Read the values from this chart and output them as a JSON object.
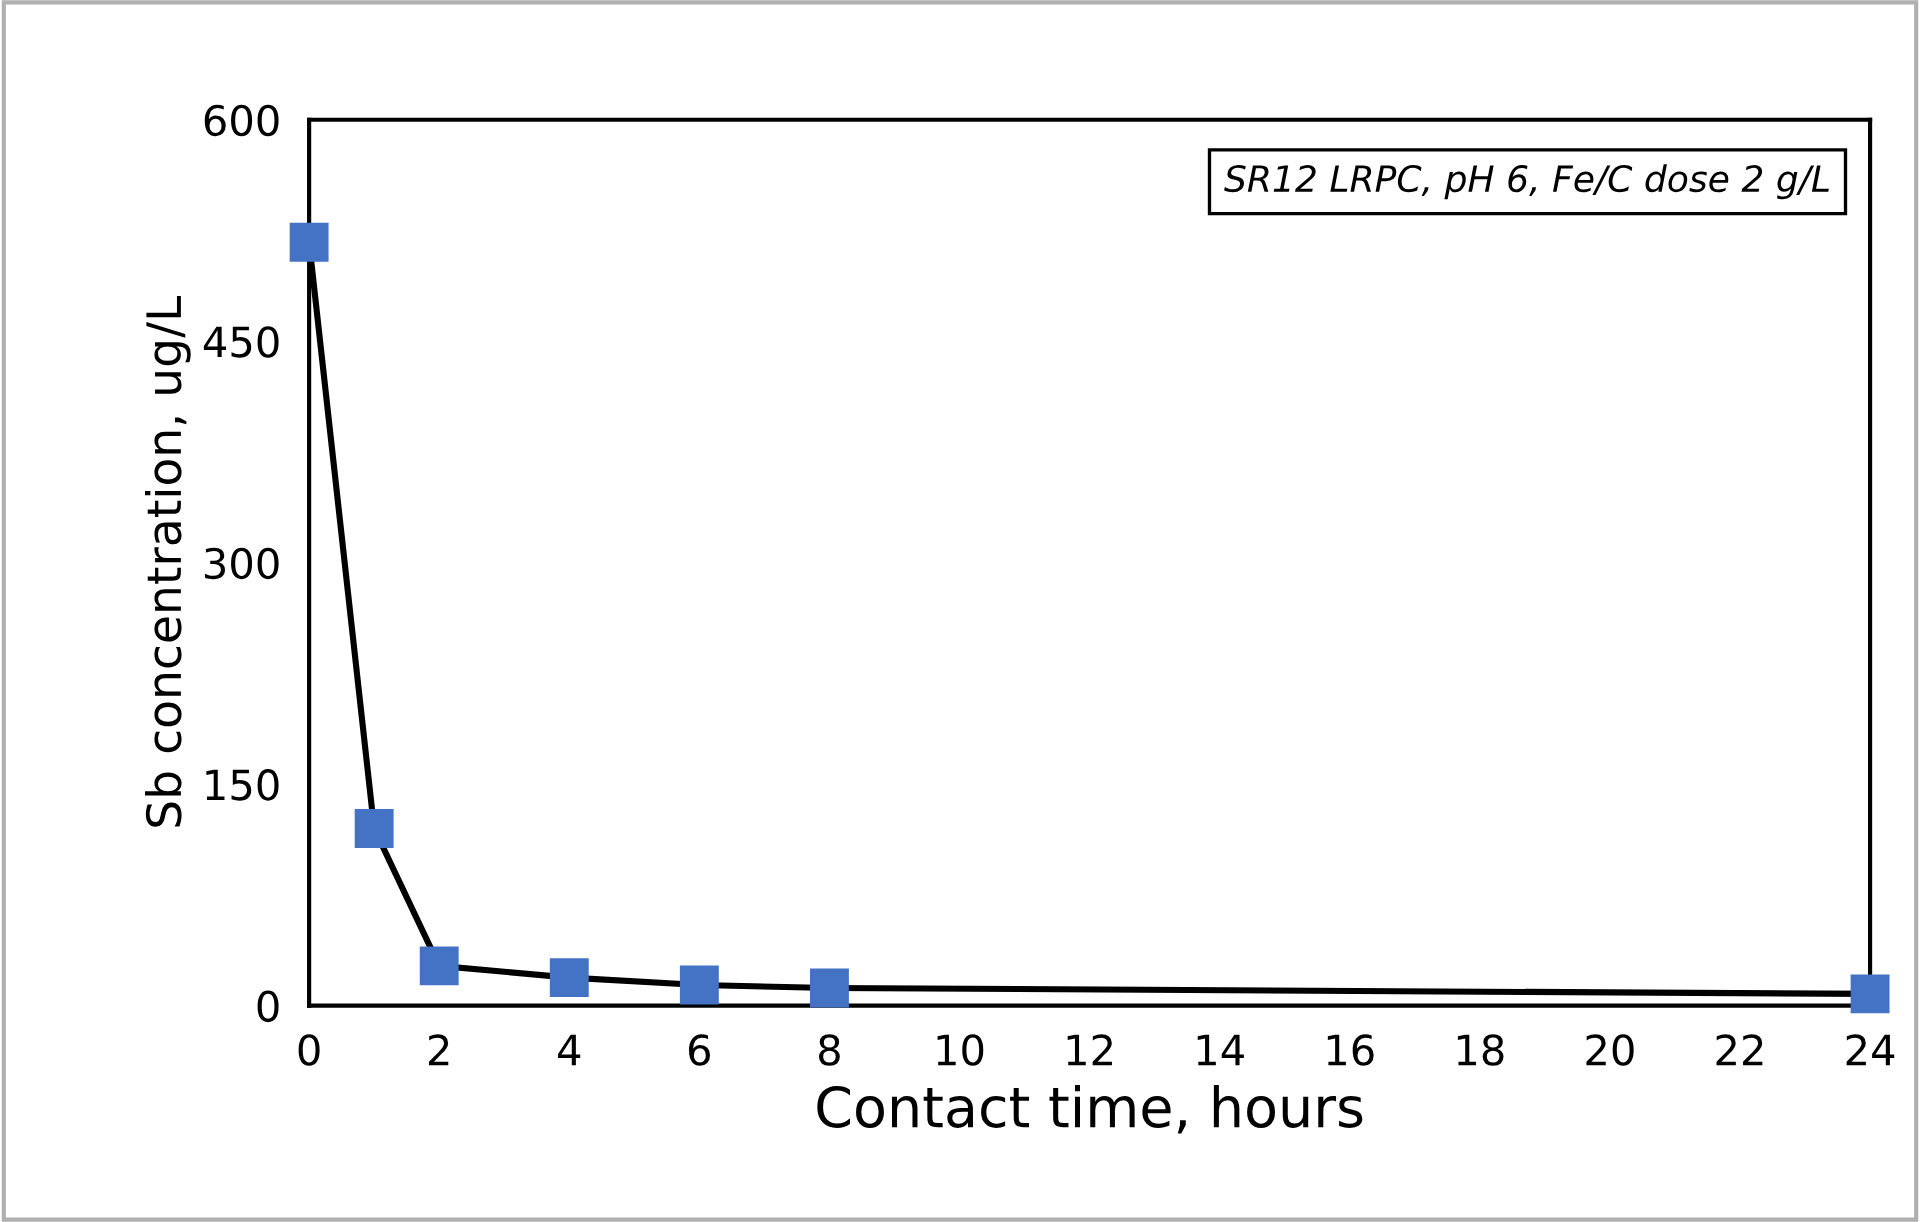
{
  "chart_data": {
    "type": "line",
    "xlabel": "Contact time, hours",
    "ylabel": "Sb concentration, ug/L",
    "x": [
      0,
      1,
      2,
      4,
      6,
      8,
      24
    ],
    "series": [
      {
        "color": "#4472c4",
        "values": [
          517,
          120,
          27,
          19,
          14,
          12,
          8
        ]
      }
    ],
    "xlim": [
      0,
      24
    ],
    "xticks": [
      0,
      2,
      4,
      6,
      8,
      10,
      12,
      14,
      16,
      18,
      20,
      22,
      24
    ],
    "ylim": [
      0,
      600
    ],
    "yticks": [
      0,
      150,
      300,
      450,
      600
    ],
    "grid": false,
    "legend": false,
    "marker": "square",
    "line_style": "solid",
    "annotations": [
      "SR12 LRPC, pH 6, Fe/C dose 2 g/L"
    ]
  }
}
